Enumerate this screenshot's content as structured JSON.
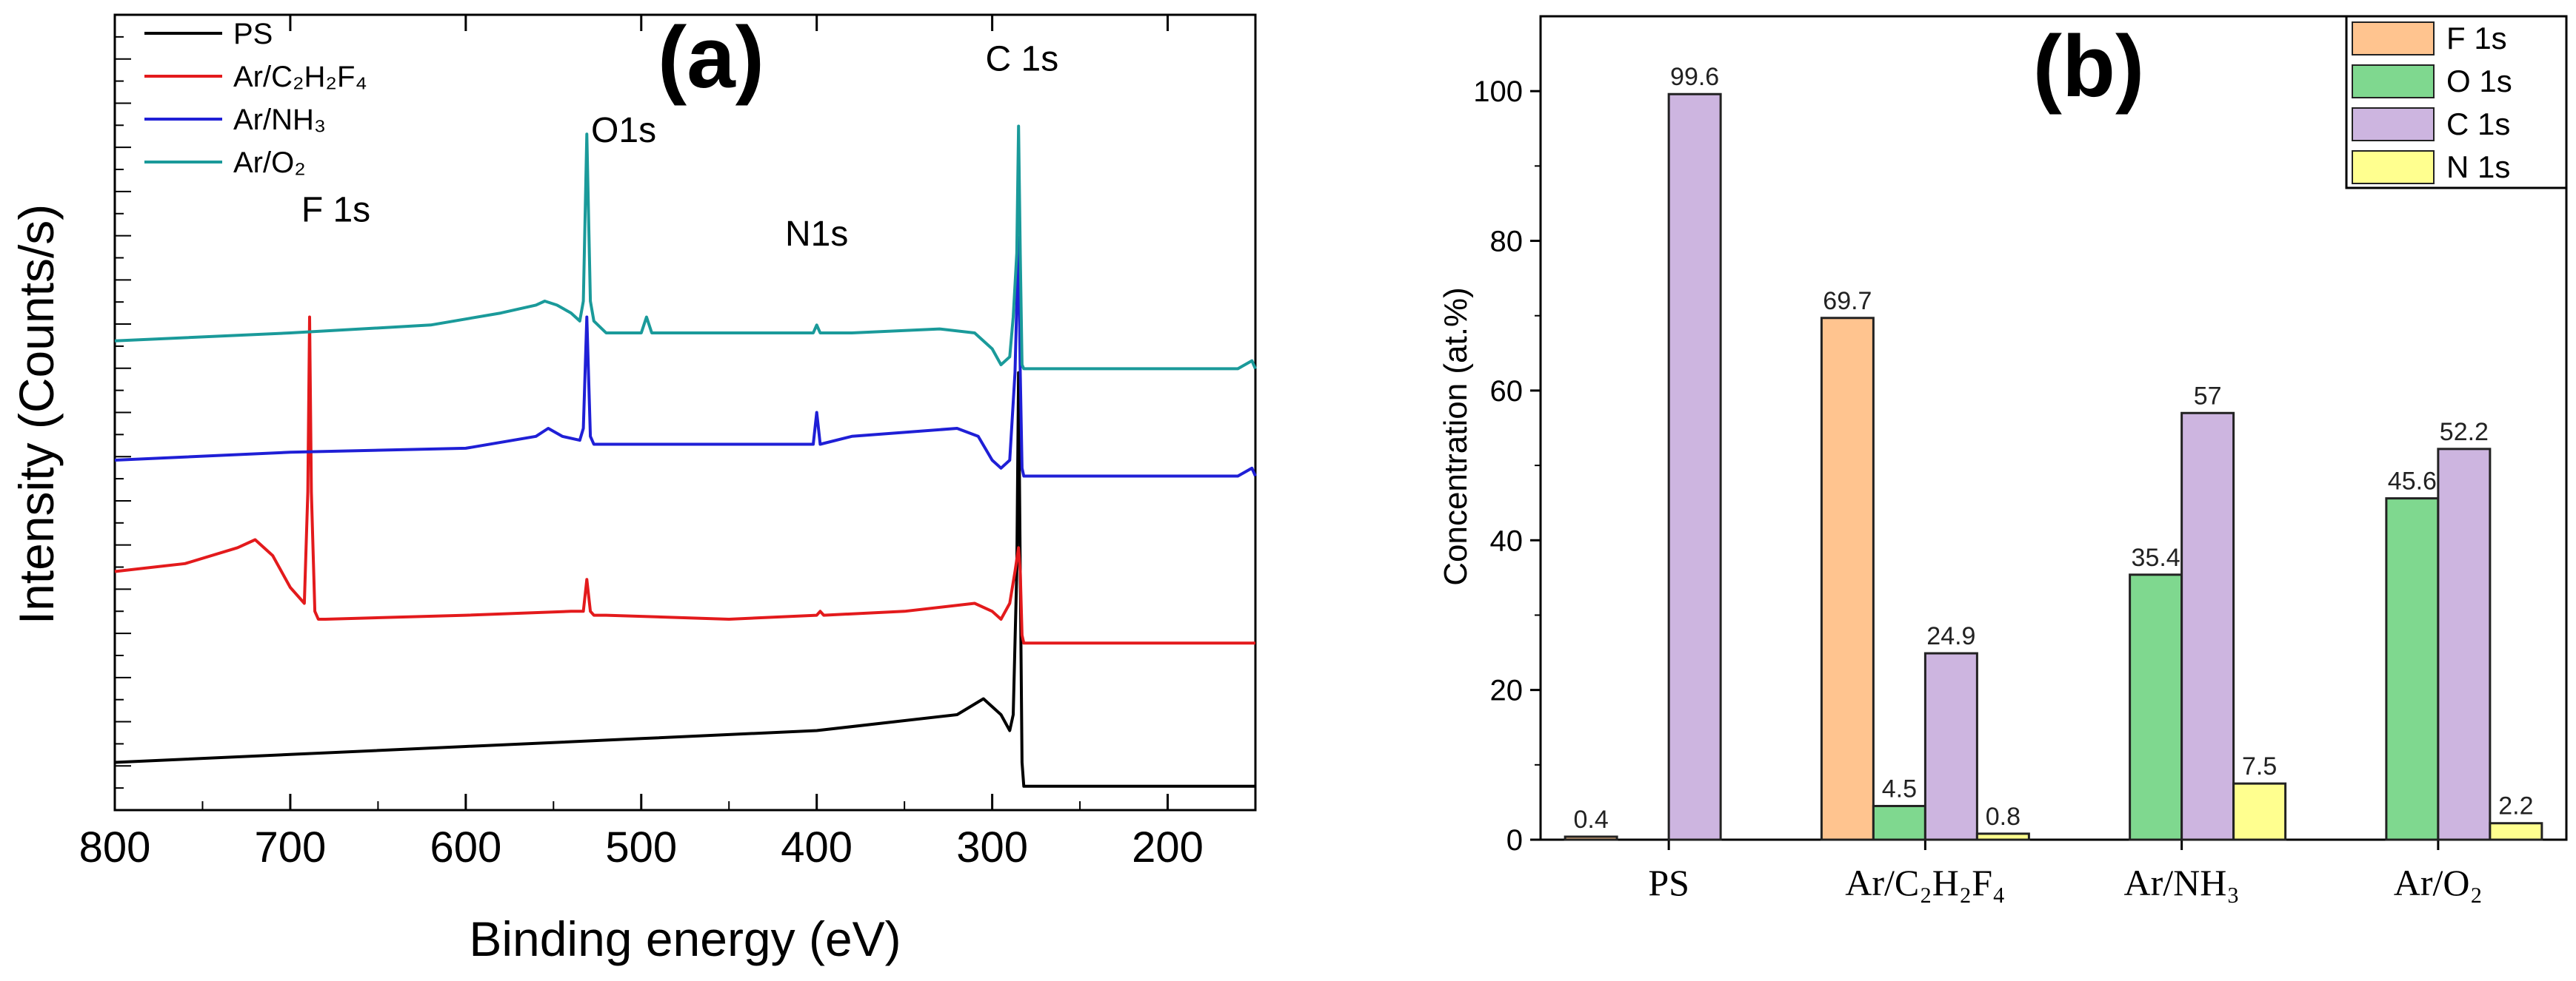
{
  "chart_data": [
    {
      "type": "line",
      "panel_label": "(a)",
      "title": "(a)",
      "xlabel": "Binding energy (eV)",
      "ylabel": "Intensity (Counts/s)",
      "xlim": [
        800,
        150
      ],
      "x_ticks": [
        "800",
        "700",
        "600",
        "500",
        "400",
        "300",
        "200"
      ],
      "y_ticks_labeled": false,
      "grid": false,
      "legend_position": "top-left",
      "series": [
        {
          "name": "PS",
          "color": "#000000",
          "x": [
            800,
            700,
            600,
            500,
            400,
            320,
            305,
            295,
            290,
            288,
            286,
            285,
            284,
            283,
            282,
            280,
            275,
            250,
            200,
            150
          ],
          "y": [
            0.06,
            0.07,
            0.08,
            0.09,
            0.1,
            0.12,
            0.14,
            0.12,
            0.1,
            0.12,
            0.3,
            0.55,
            0.3,
            0.06,
            0.03,
            0.03,
            0.03,
            0.03,
            0.03,
            0.03
          ]
        },
        {
          "name": "Ar/C₂H₂F₄",
          "color": "#e31a1c",
          "x": [
            800,
            760,
            730,
            720,
            710,
            700,
            692,
            690,
            689,
            688,
            686,
            684,
            680,
            600,
            540,
            533,
            531,
            529,
            527,
            520,
            450,
            400,
            398,
            396,
            350,
            310,
            300,
            295,
            290,
            287,
            285,
            284,
            283,
            282,
            280,
            250,
            200,
            150
          ],
          "y": [
            0.3,
            0.31,
            0.33,
            0.34,
            0.32,
            0.28,
            0.26,
            0.4,
            0.62,
            0.4,
            0.25,
            0.24,
            0.24,
            0.245,
            0.25,
            0.25,
            0.29,
            0.25,
            0.245,
            0.245,
            0.24,
            0.245,
            0.25,
            0.245,
            0.25,
            0.26,
            0.25,
            0.24,
            0.26,
            0.3,
            0.33,
            0.3,
            0.22,
            0.21,
            0.21,
            0.21,
            0.21,
            0.21
          ]
        },
        {
          "name": "Ar/NH₃",
          "color": "#1f1fd6",
          "x": [
            800,
            700,
            600,
            560,
            553,
            545,
            535,
            533,
            531,
            529,
            527,
            520,
            500,
            470,
            420,
            402,
            400,
            398,
            380,
            320,
            308,
            300,
            295,
            290,
            287,
            285,
            284,
            283,
            282,
            280,
            250,
            200,
            160,
            152,
            150
          ],
          "y": [
            0.44,
            0.45,
            0.455,
            0.47,
            0.48,
            0.47,
            0.465,
            0.48,
            0.62,
            0.47,
            0.46,
            0.46,
            0.46,
            0.46,
            0.46,
            0.46,
            0.5,
            0.46,
            0.47,
            0.48,
            0.47,
            0.44,
            0.43,
            0.44,
            0.55,
            0.72,
            0.55,
            0.43,
            0.42,
            0.42,
            0.42,
            0.42,
            0.42,
            0.43,
            0.42
          ]
        },
        {
          "name": "Ar/O₂",
          "color": "#1a9a9a",
          "x": [
            800,
            700,
            620,
            580,
            560,
            555,
            548,
            540,
            535,
            533,
            531,
            529,
            527,
            520,
            500,
            497,
            494,
            480,
            420,
            402,
            400,
            398,
            380,
            330,
            310,
            300,
            295,
            290,
            288,
            286,
            285,
            284,
            283,
            282,
            280,
            250,
            200,
            160,
            152,
            150
          ],
          "y": [
            0.59,
            0.6,
            0.61,
            0.625,
            0.635,
            0.64,
            0.635,
            0.625,
            0.615,
            0.64,
            0.85,
            0.64,
            0.615,
            0.6,
            0.6,
            0.62,
            0.6,
            0.6,
            0.6,
            0.6,
            0.61,
            0.6,
            0.6,
            0.605,
            0.6,
            0.58,
            0.56,
            0.57,
            0.62,
            0.7,
            0.86,
            0.7,
            0.56,
            0.555,
            0.555,
            0.555,
            0.555,
            0.555,
            0.565,
            0.555
          ]
        }
      ],
      "annotations": [
        {
          "text": "F 1s",
          "x": 674,
          "y": 0.74
        },
        {
          "text": "O1s",
          "x": 510,
          "y": 0.84
        },
        {
          "text": "N1s",
          "x": 400,
          "y": 0.71
        },
        {
          "text": "C 1s",
          "x": 283,
          "y": 0.93
        }
      ]
    },
    {
      "type": "bar",
      "panel_label": "(b)",
      "title": "(b)",
      "xlabel": "",
      "ylabel": "Concentration (at.%)",
      "ylim": [
        0,
        110
      ],
      "y_ticks": [
        0,
        20,
        40,
        60,
        80,
        100
      ],
      "grid": false,
      "legend_position": "top-right",
      "categories": [
        "PS",
        "Ar/C₂H₂F₄",
        "Ar/NH₃",
        "Ar/O₂"
      ],
      "series": [
        {
          "name": "F 1s",
          "color": "#ffc48f",
          "values": [
            0.4,
            69.7,
            null,
            null
          ]
        },
        {
          "name": "O 1s",
          "color": "#7fd88f",
          "values": [
            null,
            4.5,
            35.4,
            45.6
          ]
        },
        {
          "name": "C 1s",
          "color": "#cdb5e0",
          "values": [
            99.6,
            24.9,
            57,
            52.2
          ]
        },
        {
          "name": "N 1s",
          "color": "#ffff8f",
          "values": [
            null,
            0.8,
            7.5,
            2.2
          ]
        }
      ],
      "data_labels": [
        {
          "category": 0,
          "series": 0,
          "text": "0.4"
        },
        {
          "category": 0,
          "series": 2,
          "text": "99.6"
        },
        {
          "category": 1,
          "series": 0,
          "text": "69.7"
        },
        {
          "category": 1,
          "series": 1,
          "text": "4.5"
        },
        {
          "category": 1,
          "series": 2,
          "text": "24.9"
        },
        {
          "category": 1,
          "series": 3,
          "text": "0.8"
        },
        {
          "category": 2,
          "series": 1,
          "text": "35.4"
        },
        {
          "category": 2,
          "series": 2,
          "text": "57"
        },
        {
          "category": 2,
          "series": 3,
          "text": "7.5"
        },
        {
          "category": 3,
          "series": 1,
          "text": "45.6"
        },
        {
          "category": 3,
          "series": 2,
          "text": "52.2"
        },
        {
          "category": 3,
          "series": 3,
          "text": "2.2"
        }
      ]
    }
  ]
}
